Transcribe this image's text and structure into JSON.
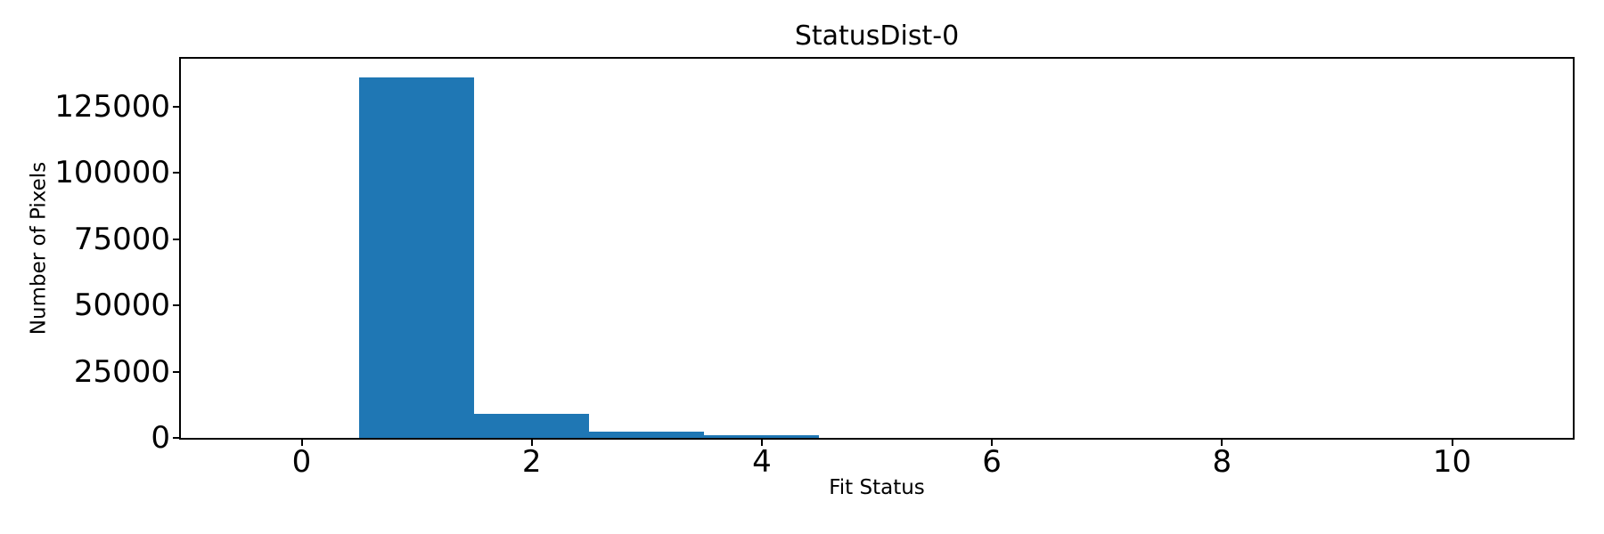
{
  "chart_data": {
    "type": "histogram",
    "title": "StatusDist-0",
    "xlabel": "Fit Status",
    "ylabel": "Number of Pixels",
    "bar_color": "#1f77b4",
    "background_color": "#ffffff",
    "text_color": "#000000",
    "grid": false,
    "legend": null,
    "bin_edges": [
      0.5,
      1.5,
      2.5,
      3.5,
      4.5
    ],
    "bin_centers": [
      1,
      2,
      3,
      4
    ],
    "counts": [
      136000,
      9000,
      2500,
      1000
    ],
    "xlim": [
      -1.05,
      11.05
    ],
    "ylim": [
      0,
      143000
    ],
    "x_ticks": {
      "values": [
        0,
        2,
        4,
        6,
        8,
        10
      ],
      "labels": [
        "0",
        "2",
        "4",
        "6",
        "8",
        "10"
      ]
    },
    "y_ticks": {
      "values": [
        0,
        25000,
        50000,
        75000,
        100000,
        125000
      ],
      "labels": [
        "0",
        "25000",
        "50000",
        "75000",
        "100000",
        "125000"
      ]
    }
  }
}
